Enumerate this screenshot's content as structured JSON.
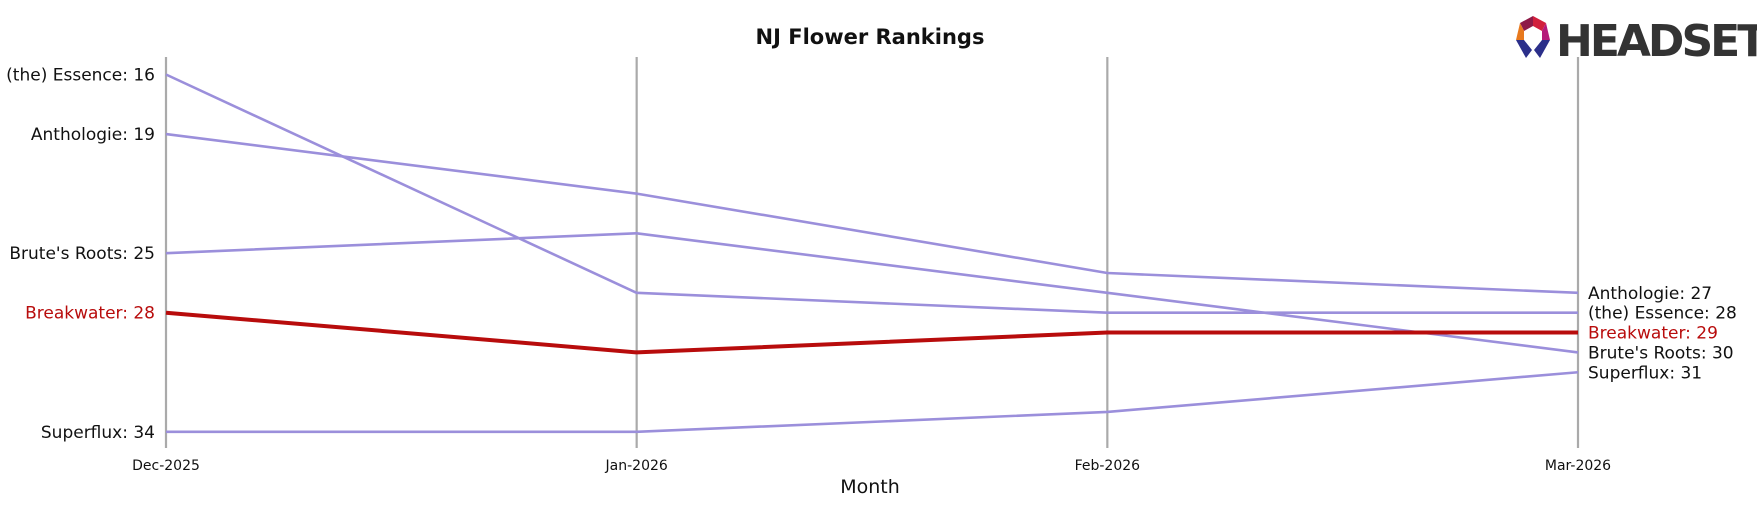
{
  "chart_data": {
    "type": "line",
    "title": "NJ Flower Rankings",
    "xlabel": "Month",
    "ylabel": "",
    "x": [
      "Dec-2025",
      "Jan-2026",
      "Feb-2026",
      "Mar-2026"
    ],
    "y_inverted": true,
    "ylim": [
      35,
      15
    ],
    "grid": "vertical lines at each month",
    "series": [
      {
        "name": "(the) Essence",
        "values": [
          16,
          27,
          28,
          28
        ],
        "highlight": false
      },
      {
        "name": "Anthologie",
        "values": [
          19,
          22,
          26,
          27
        ],
        "highlight": false
      },
      {
        "name": "Brute's Roots",
        "values": [
          25,
          24,
          27,
          30
        ],
        "highlight": false
      },
      {
        "name": "Breakwater",
        "values": [
          28,
          30,
          29,
          29
        ],
        "highlight": true
      },
      {
        "name": "Superflux",
        "values": [
          34,
          34,
          33,
          31
        ],
        "highlight": false
      }
    ],
    "left_labels": [
      {
        "text": "(the) Essence: 16",
        "highlight": false
      },
      {
        "text": "Anthologie: 19",
        "highlight": false
      },
      {
        "text": "Brute's Roots: 25",
        "highlight": false
      },
      {
        "text": "Breakwater: 28",
        "highlight": true
      },
      {
        "text": "Superflux: 34",
        "highlight": false
      }
    ],
    "right_labels": [
      {
        "text": "Anthologie: 27",
        "rank": 27,
        "highlight": false
      },
      {
        "text": "(the) Essence: 28",
        "rank": 28,
        "highlight": false
      },
      {
        "text": "Breakwater: 29",
        "rank": 29,
        "highlight": true
      },
      {
        "text": "Brute's Roots: 30",
        "rank": 30,
        "highlight": false
      },
      {
        "text": "Superflux: 31",
        "rank": 31,
        "highlight": false
      }
    ],
    "colors": {
      "series": "#9b8fdb",
      "highlight": "#b80c0c",
      "gridline": "#aaaaaa",
      "text": "#111111"
    }
  },
  "logo": {
    "text": "HEADSET",
    "text_color": "#333333",
    "mark_colors": [
      "#d21f3c",
      "#8e1a47",
      "#e8791e",
      "#2b2f8a",
      "#b5197a"
    ]
  }
}
